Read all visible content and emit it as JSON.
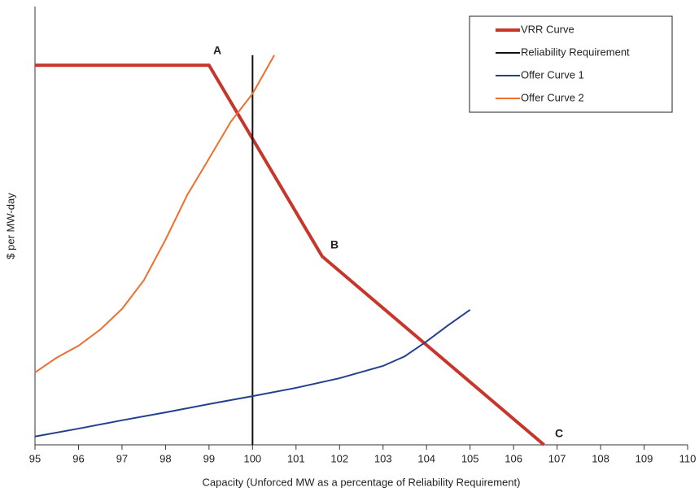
{
  "chart_data": {
    "type": "line",
    "x_label": "Capacity (Unforced MW as a percentage of Reliability Requirement)",
    "y_label": "$ per MW-day",
    "xlim": [
      95,
      110
    ],
    "xticks": [
      95,
      96,
      97,
      98,
      99,
      100,
      101,
      102,
      103,
      104,
      105,
      106,
      107,
      108,
      109,
      110
    ],
    "ylim": [
      0,
      100
    ],
    "legend": "upper right",
    "series": [
      {
        "name": "VRR Curve",
        "color": "#c8352a",
        "line_width": 4,
        "x": [
          95,
          99,
          101.6,
          106.7
        ],
        "values": [
          86.6,
          86.6,
          43.0,
          0
        ]
      },
      {
        "name": "Reliability Requirement",
        "color": "#111111",
        "line_width": 2,
        "x": [
          100,
          100
        ],
        "values": [
          88.9,
          0
        ]
      },
      {
        "name": "Offer Curve 1",
        "color": "#233f8f",
        "line_width": 2,
        "x": [
          95,
          96,
          97,
          98,
          99,
          100,
          101,
          102,
          103,
          103.5,
          104,
          104.5,
          105
        ],
        "values": [
          1.9,
          3.7,
          5.6,
          7.4,
          9.3,
          11.1,
          13.0,
          15.2,
          18.0,
          20.2,
          23.6,
          27.3,
          30.8
        ]
      },
      {
        "name": "Offer Curve 2",
        "color": "#ee6f2d",
        "line_width": 2,
        "x": [
          95,
          95.5,
          96,
          96.5,
          97,
          97.5,
          98,
          98.5,
          99,
          99.5,
          100,
          100.5
        ],
        "values": [
          16.5,
          19.9,
          22.6,
          26.3,
          31.0,
          37.5,
          46.8,
          57.0,
          65.3,
          73.7,
          80.1,
          88.9
        ]
      }
    ],
    "annotations": [
      "A",
      "B",
      "C"
    ]
  }
}
